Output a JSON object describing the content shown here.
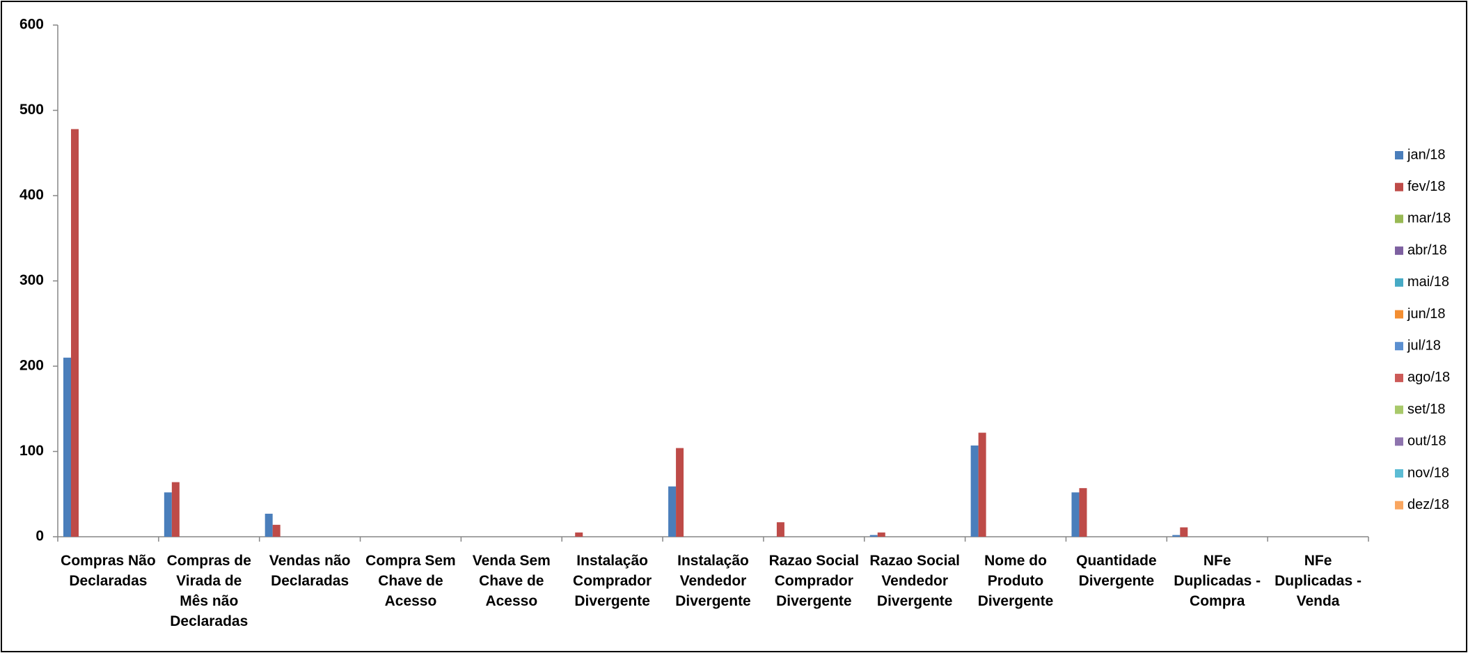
{
  "chart_data": {
    "type": "bar",
    "categories": [
      "Compras Não Declaradas",
      "Compras de Virada de Mês não Declaradas",
      "Vendas não Declaradas",
      "Compra Sem Chave de Acesso",
      "Venda Sem Chave de Acesso",
      "Instalação Comprador Divergente",
      "Instalação Vendedor Divergente",
      "Razao Social Comprador Divergente",
      "Razao Social Vendedor Divergente",
      "Nome do Produto Divergente",
      "Quantidade Divergente",
      "NFe Duplicadas - Compra",
      "NFe Duplicadas - Venda"
    ],
    "series": [
      {
        "name": "jan/18",
        "color": "#4a7ebb",
        "values": [
          210,
          52,
          27,
          0,
          0,
          0,
          59,
          0,
          2,
          107,
          52,
          2,
          0
        ]
      },
      {
        "name": "fev/18",
        "color": "#be4b48",
        "values": [
          478,
          64,
          14,
          0,
          0,
          5,
          104,
          17,
          5,
          122,
          57,
          11,
          0
        ]
      },
      {
        "name": "mar/18",
        "color": "#98b954",
        "values": [
          null,
          null,
          null,
          null,
          null,
          null,
          null,
          null,
          null,
          null,
          null,
          null,
          null
        ]
      },
      {
        "name": "abr/18",
        "color": "#7d60a0",
        "values": [
          null,
          null,
          null,
          null,
          null,
          null,
          null,
          null,
          null,
          null,
          null,
          null,
          null
        ]
      },
      {
        "name": "mai/18",
        "color": "#46aac5",
        "values": [
          null,
          null,
          null,
          null,
          null,
          null,
          null,
          null,
          null,
          null,
          null,
          null,
          null
        ]
      },
      {
        "name": "jun/18",
        "color": "#f38e31",
        "values": [
          null,
          null,
          null,
          null,
          null,
          null,
          null,
          null,
          null,
          null,
          null,
          null,
          null
        ]
      },
      {
        "name": "jul/18",
        "color": "#5b8fd0",
        "values": [
          null,
          null,
          null,
          null,
          null,
          null,
          null,
          null,
          null,
          null,
          null,
          null,
          null
        ]
      },
      {
        "name": "ago/18",
        "color": "#cc5a57",
        "values": [
          null,
          null,
          null,
          null,
          null,
          null,
          null,
          null,
          null,
          null,
          null,
          null,
          null
        ]
      },
      {
        "name": "set/18",
        "color": "#a8c96a",
        "values": [
          null,
          null,
          null,
          null,
          null,
          null,
          null,
          null,
          null,
          null,
          null,
          null,
          null
        ]
      },
      {
        "name": "out/18",
        "color": "#8e74ae",
        "values": [
          null,
          null,
          null,
          null,
          null,
          null,
          null,
          null,
          null,
          null,
          null,
          null,
          null
        ]
      },
      {
        "name": "nov/18",
        "color": "#5cbcd4",
        "values": [
          null,
          null,
          null,
          null,
          null,
          null,
          null,
          null,
          null,
          null,
          null,
          null,
          null
        ]
      },
      {
        "name": "dez/18",
        "color": "#f9a660",
        "values": [
          null,
          null,
          null,
          null,
          null,
          null,
          null,
          null,
          null,
          null,
          null,
          null,
          null
        ]
      }
    ],
    "ylim": [
      0,
      600
    ],
    "yticks": [
      0,
      100,
      200,
      300,
      400,
      500,
      600
    ],
    "legend": "right"
  }
}
